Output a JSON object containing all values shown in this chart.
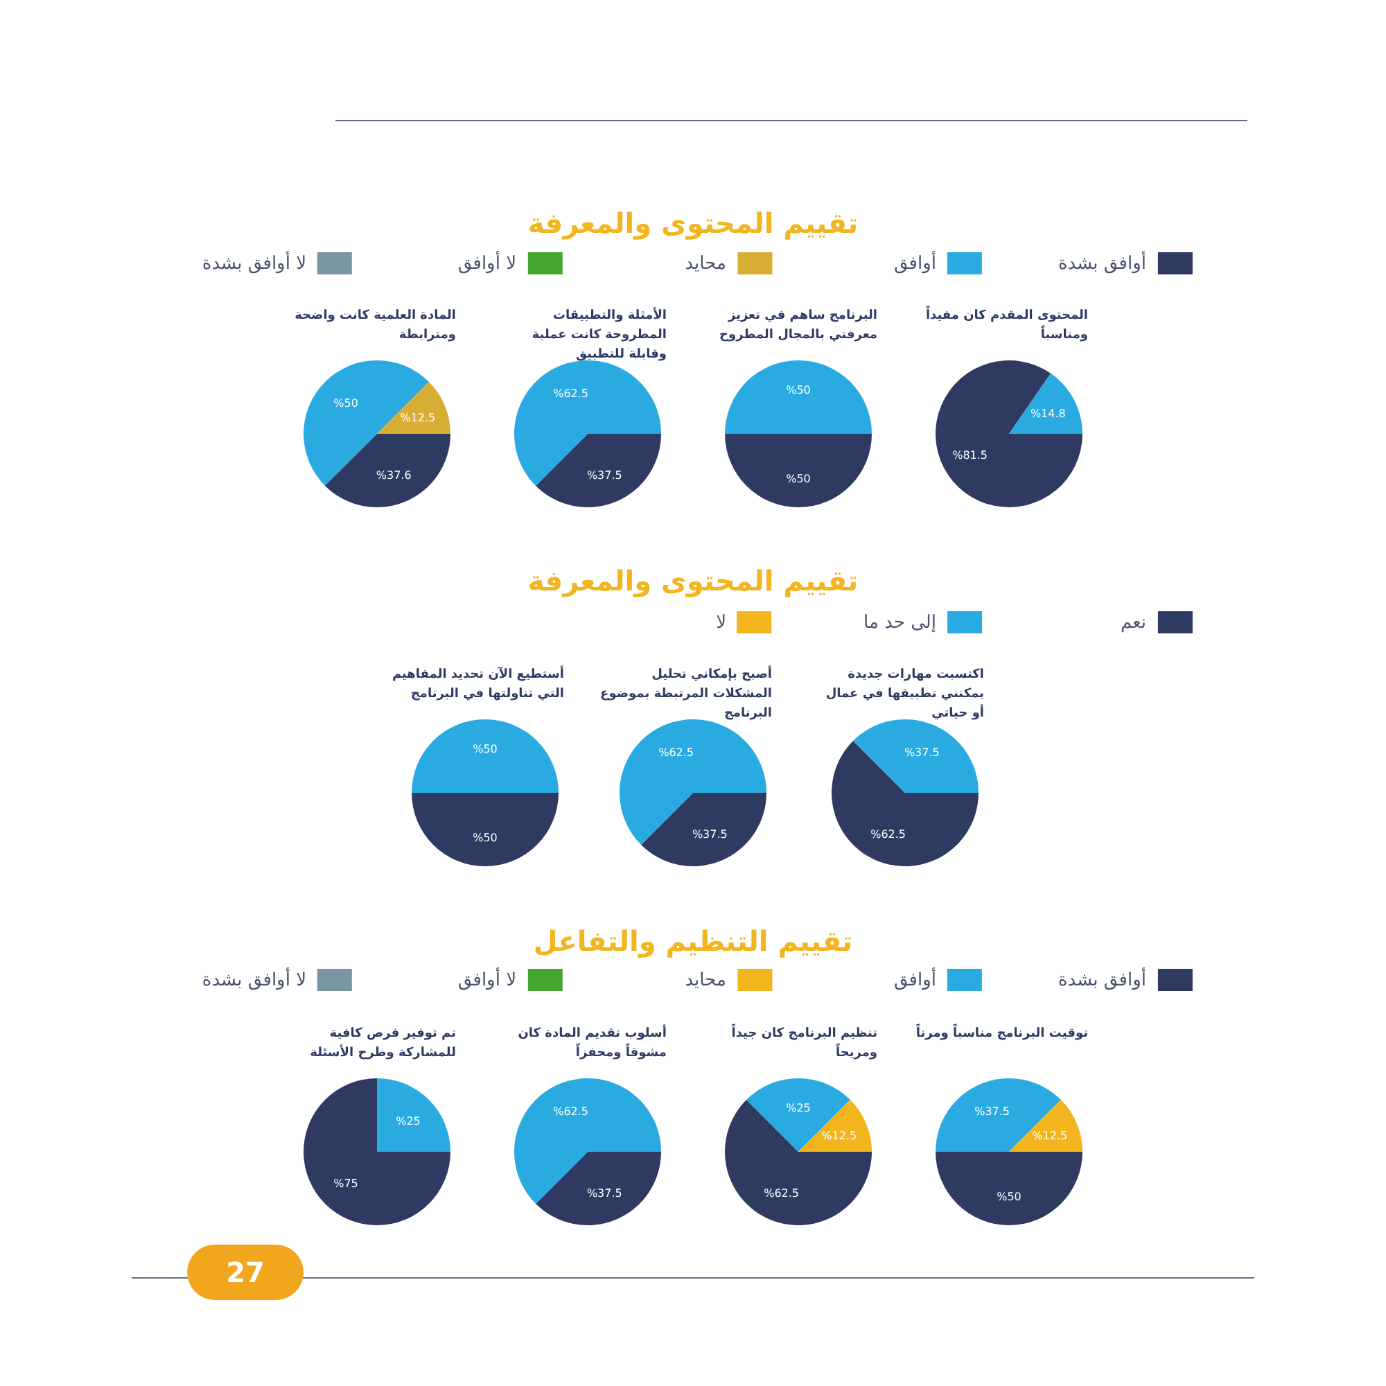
{
  "chart_data": [
    {
      "type": "pie",
      "subtitle": "المحتوى المقدم كان مفيداً ومناسباً",
      "colors": [
        "#2f3a63",
        "#29abe2"
      ],
      "values": [
        81.5,
        14.8
      ],
      "value_labels": [
        "%81.5",
        "%14.8"
      ]
    },
    {
      "type": "pie",
      "title": "تقييم المحتوى والمعرفة",
      "legend": "top",
      "subtitle": "البرنامج ساهم في تعزيز معرفتي بالمجال المطروح",
      "categories": [
        "أوافق بشدة",
        "أوافق",
        "محايد",
        "لا أوافق",
        "لا أوافق بشدة"
      ],
      "colors": [
        "#2f3a63",
        "#29abe2",
        "#d9ae35",
        "#43a62e",
        "#7a96a3"
      ],
      "values": [
        50,
        50,
        null,
        null,
        null
      ],
      "value_labels": [
        "%50",
        "%50",
        null,
        null,
        null
      ]
    },
    {
      "type": "pie",
      "subtitle": "الأمثلة والتطبيقات المطروحة كانت عملية وقابلة للتطبيق",
      "colors": [
        "#2f3a63",
        "#29abe2"
      ],
      "values": [
        37.5,
        62.5
      ],
      "value_labels": [
        "%37.5",
        "%62.5"
      ]
    },
    {
      "type": "pie",
      "subtitle": "المادة العلمية كانت واضحة ومترابطة",
      "colors": [
        "#2f3a63",
        "#29abe2",
        "#d9ae35"
      ],
      "values": [
        37.6,
        50,
        12.5
      ],
      "value_labels": [
        "%37.6",
        "%50",
        "%12.5"
      ]
    },
    {
      "type": "pie",
      "subtitle": "اكتسبت مهارات جديدة يمكنني تطبيقها في عمال أو حياتي",
      "colors": [
        "#2f3a63",
        "#29abe2"
      ],
      "values": [
        62.5,
        37.5
      ],
      "value_labels": [
        "%62.5",
        "%37.5"
      ]
    },
    {
      "type": "pie",
      "title": "تقييم المحتوى والمعرفة",
      "legend": "top",
      "subtitle": "أصبح بإمكاني تحليل المشكلات المرتبطة بموضوع البرنامج",
      "categories": [
        "نعم",
        "إلى حد ما",
        "لا"
      ],
      "colors": [
        "#2f3a63",
        "#29abe2",
        "#f2b51d"
      ],
      "values": [
        37.5,
        62.5,
        null
      ],
      "value_labels": [
        "%37.5",
        "%62.5",
        null
      ]
    },
    {
      "type": "pie",
      "subtitle": "أستطيع الآن تحديد المفاهيم التي تناولتها في البرنامج",
      "colors": [
        "#2f3a63",
        "#29abe2"
      ],
      "values": [
        50,
        50
      ],
      "value_labels": [
        "%50",
        "%50"
      ]
    },
    {
      "type": "pie",
      "subtitle": "توقيت البرنامج مناسباً ومرناً",
      "colors": [
        "#2f3a63",
        "#29abe2",
        "#f2b51d"
      ],
      "values": [
        50,
        37.5,
        12.5
      ],
      "value_labels": [
        "%50",
        "%37.5",
        "%12.5"
      ]
    },
    {
      "type": "pie",
      "title": "تقييم التنظيم والتفاعل",
      "legend": "top",
      "subtitle": "تنظيم البرنامج كان جيداً ومريحاً",
      "categories": [
        "أوافق بشدة",
        "أوافق",
        "محايد",
        "لا أوافق",
        "لا أوافق بشدة"
      ],
      "colors": [
        "#2f3a63",
        "#29abe2",
        "#f2b51d",
        "#43a62e",
        "#7a96a3"
      ],
      "values": [
        62.5,
        25,
        12.5,
        null,
        null
      ],
      "value_labels": [
        "%62.5",
        "%25",
        "%12.5",
        null,
        null
      ]
    },
    {
      "type": "pie",
      "subtitle": "أسلوب تقديم المادة كان مشوقاً ومحفزاً",
      "colors": [
        "#2f3a63",
        "#29abe2"
      ],
      "values": [
        37.5,
        62.5
      ],
      "value_labels": [
        "%37.5",
        "%62.5"
      ]
    },
    {
      "type": "pie",
      "subtitle": "تم توفير فرص كافية للمشاركة وطرح الأسئلة",
      "colors": [
        "#2f3a63",
        "#29abe2"
      ],
      "values": [
        75,
        25
      ],
      "value_labels": [
        "%75",
        "%25"
      ],
      "annotations": [
        "27"
      ]
    }
  ]
}
